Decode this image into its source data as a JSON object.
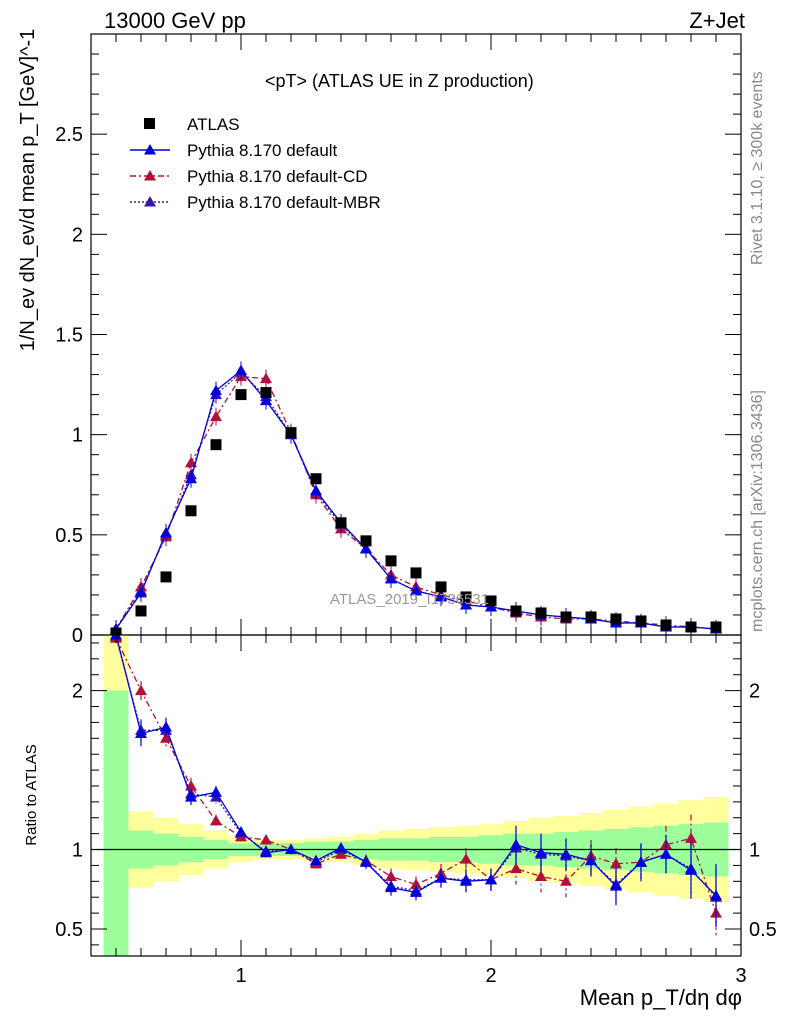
{
  "header": {
    "left": "13000 GeV pp",
    "right": "Z+Jet"
  },
  "side_labels": {
    "rivet": "Rivet 3.1.10, ≥ 300k events",
    "mcplots": "mcplots.cern.ch [arXiv:1306.3436]"
  },
  "watermark": "ATLAS_2019_I1736531",
  "colors": {
    "data": "#000000",
    "default": "#0000dd",
    "cd": "#b0103a",
    "mbr": "#3a16a8",
    "band_inner": "#9cff9c",
    "band_outer": "#ffff9c"
  },
  "chart_data": [
    {
      "type": "scatter",
      "title": "<pT> (ATLAS UE in Z production)",
      "ylabel": "1/N_ev dN_ev/d mean p_T [GeV]^-1",
      "xlim": [
        0.4,
        3.0
      ],
      "ylim": [
        0,
        3.0
      ],
      "yticks": [
        0,
        0.5,
        1,
        1.5,
        2,
        2.5
      ],
      "ytick_labels": [
        "0",
        "0.5",
        "1",
        "1.5",
        "2",
        "2.5"
      ],
      "legend": [
        "ATLAS",
        "Pythia 8.170 default",
        "Pythia 8.170 default-CD",
        "Pythia 8.170 default-MBR"
      ],
      "legend_position": "top-left",
      "x": [
        0.5,
        0.6,
        0.7,
        0.8,
        0.9,
        1.0,
        1.1,
        1.2,
        1.3,
        1.4,
        1.5,
        1.6,
        1.7,
        1.8,
        1.9,
        2.0,
        2.1,
        2.2,
        2.3,
        2.4,
        2.5,
        2.6,
        2.7,
        2.8,
        2.9
      ],
      "series": [
        {
          "name": "ATLAS",
          "values": [
            0.01,
            0.12,
            0.29,
            0.62,
            0.95,
            1.2,
            1.21,
            1.01,
            0.78,
            0.56,
            0.47,
            0.37,
            0.31,
            0.24,
            0.19,
            0.17,
            0.12,
            0.11,
            0.09,
            0.09,
            0.08,
            0.07,
            0.05,
            0.04,
            0.04
          ]
        },
        {
          "name": "Pythia 8.170 default",
          "values": [
            0.03,
            0.21,
            0.51,
            0.78,
            1.22,
            1.32,
            1.17,
            1.0,
            0.72,
            0.56,
            0.43,
            0.28,
            0.22,
            0.19,
            0.15,
            0.14,
            0.12,
            0.1,
            0.09,
            0.08,
            0.06,
            0.06,
            0.04,
            0.04,
            0.03
          ]
        },
        {
          "name": "Pythia 8.170 default-CD",
          "values": [
            0.03,
            0.24,
            0.49,
            0.86,
            1.09,
            1.29,
            1.28,
            1.01,
            0.7,
            0.53,
            0.43,
            0.3,
            0.24,
            0.2,
            0.17,
            0.14,
            0.11,
            0.09,
            0.08,
            0.08,
            0.07,
            0.06,
            0.05,
            0.04,
            0.03
          ]
        },
        {
          "name": "Pythia 8.170 default-MBR",
          "values": [
            0.03,
            0.22,
            0.5,
            0.8,
            1.2,
            1.31,
            1.19,
            1.0,
            0.71,
            0.55,
            0.43,
            0.28,
            0.22,
            0.19,
            0.15,
            0.14,
            0.12,
            0.1,
            0.09,
            0.08,
            0.06,
            0.06,
            0.04,
            0.04,
            0.03
          ]
        }
      ]
    },
    {
      "type": "line",
      "ylabel": "Ratio to ATLAS",
      "xlabel": "Mean p_T/dη dφ",
      "xlim": [
        0.4,
        3.0
      ],
      "ylim": [
        0.33,
        2.35
      ],
      "xticks": [
        1,
        2,
        3
      ],
      "xtick_labels": [
        "1",
        "2",
        "3"
      ],
      "yticks": [
        0.5,
        1,
        2
      ],
      "ytick_labels": [
        "0.5",
        "1",
        "2"
      ],
      "x": [
        0.5,
        0.6,
        0.7,
        0.8,
        0.9,
        1.0,
        1.1,
        1.2,
        1.3,
        1.4,
        1.5,
        1.6,
        1.7,
        1.8,
        1.9,
        2.0,
        2.1,
        2.2,
        2.3,
        2.4,
        2.5,
        2.6,
        2.7,
        2.8,
        2.9
      ],
      "band_inner": [
        [
          0.3,
          2.0
        ],
        [
          0.88,
          1.12
        ],
        [
          0.9,
          1.1
        ],
        [
          0.92,
          1.08
        ],
        [
          0.94,
          1.06
        ],
        [
          0.96,
          1.04
        ],
        [
          0.96,
          1.04
        ],
        [
          0.96,
          1.04
        ],
        [
          0.95,
          1.05
        ],
        [
          0.95,
          1.05
        ],
        [
          0.94,
          1.06
        ],
        [
          0.93,
          1.07
        ],
        [
          0.93,
          1.07
        ],
        [
          0.92,
          1.08
        ],
        [
          0.92,
          1.08
        ],
        [
          0.91,
          1.09
        ],
        [
          0.9,
          1.1
        ],
        [
          0.9,
          1.1
        ],
        [
          0.89,
          1.11
        ],
        [
          0.88,
          1.12
        ],
        [
          0.87,
          1.13
        ],
        [
          0.86,
          1.14
        ],
        [
          0.85,
          1.15
        ],
        [
          0.84,
          1.16
        ],
        [
          0.83,
          1.17
        ]
      ],
      "band_outer": [
        [
          0.3,
          2.35
        ],
        [
          0.76,
          1.24
        ],
        [
          0.8,
          1.2
        ],
        [
          0.84,
          1.16
        ],
        [
          0.88,
          1.12
        ],
        [
          0.92,
          1.08
        ],
        [
          0.94,
          1.06
        ],
        [
          0.94,
          1.06
        ],
        [
          0.93,
          1.07
        ],
        [
          0.92,
          1.08
        ],
        [
          0.9,
          1.1
        ],
        [
          0.88,
          1.12
        ],
        [
          0.87,
          1.13
        ],
        [
          0.86,
          1.14
        ],
        [
          0.85,
          1.15
        ],
        [
          0.84,
          1.16
        ],
        [
          0.82,
          1.18
        ],
        [
          0.8,
          1.2
        ],
        [
          0.79,
          1.21
        ],
        [
          0.77,
          1.23
        ],
        [
          0.75,
          1.25
        ],
        [
          0.73,
          1.27
        ],
        [
          0.71,
          1.29
        ],
        [
          0.69,
          1.31
        ],
        [
          0.67,
          1.33
        ]
      ],
      "series": [
        {
          "name": "Pythia 8.170 default",
          "values": [
            2.35,
            1.73,
            1.77,
            1.33,
            1.36,
            1.11,
            0.98,
            1.0,
            0.93,
            1.01,
            0.92,
            0.76,
            0.73,
            0.82,
            0.8,
            0.81,
            1.03,
            0.98,
            0.97,
            0.93,
            0.77,
            0.92,
            0.97,
            0.87,
            0.71
          ],
          "err": [
            0.04,
            0.08,
            0.06,
            0.05,
            0.04,
            0.03,
            0.03,
            0.03,
            0.03,
            0.03,
            0.04,
            0.05,
            0.05,
            0.06,
            0.07,
            0.07,
            0.12,
            0.12,
            0.1,
            0.1,
            0.12,
            0.12,
            0.12,
            0.18,
            0.2
          ]
        },
        {
          "name": "Pythia 8.170 default-CD",
          "values": [
            2.33,
            2.0,
            1.7,
            1.4,
            1.18,
            1.08,
            1.06,
            1.0,
            0.91,
            0.97,
            0.93,
            0.83,
            0.78,
            0.85,
            0.94,
            0.81,
            0.88,
            0.83,
            0.8,
            0.96,
            0.91,
            0.92,
            1.03,
            1.07,
            0.6
          ],
          "err": [
            0.04,
            0.06,
            0.05,
            0.05,
            0.04,
            0.03,
            0.03,
            0.03,
            0.03,
            0.03,
            0.04,
            0.05,
            0.05,
            0.06,
            0.07,
            0.07,
            0.1,
            0.1,
            0.1,
            0.1,
            0.1,
            0.1,
            0.12,
            0.15,
            0.14
          ]
        },
        {
          "name": "Pythia 8.170 default-MBR",
          "values": [
            2.34,
            1.75,
            1.75,
            1.35,
            1.33,
            1.1,
            0.99,
            1.0,
            0.92,
            1.0,
            0.92,
            0.77,
            0.74,
            0.82,
            0.81,
            0.81,
            1.01,
            0.97,
            0.96,
            0.93,
            0.78,
            0.92,
            0.97,
            0.88,
            0.7
          ],
          "err": [
            0.04,
            0.07,
            0.06,
            0.05,
            0.04,
            0.03,
            0.03,
            0.03,
            0.03,
            0.03,
            0.04,
            0.05,
            0.05,
            0.06,
            0.07,
            0.07,
            0.11,
            0.11,
            0.1,
            0.1,
            0.11,
            0.11,
            0.12,
            0.16,
            0.18
          ]
        }
      ]
    }
  ]
}
